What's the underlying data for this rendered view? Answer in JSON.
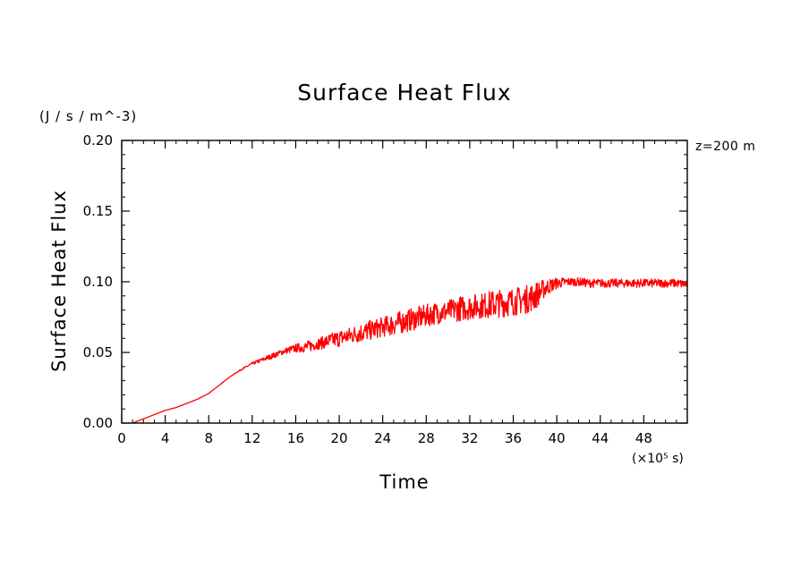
{
  "chart_data": {
    "type": "line",
    "title": "Surface Heat Flux",
    "unit_label": "(J / s / m^-3)",
    "ylabel": "Surface Heat Flux",
    "xlabel": "Time",
    "x_scale_note": "(×10⁵ s)",
    "annotation": "z=200 m",
    "xlim": [
      0,
      52
    ],
    "ylim": [
      0,
      0.2
    ],
    "x_ticks": [
      0,
      4,
      8,
      12,
      16,
      20,
      24,
      28,
      32,
      36,
      40,
      44,
      48
    ],
    "x_tick_labels": [
      "0",
      "4",
      "8",
      "12",
      "16",
      "20",
      "24",
      "28",
      "32",
      "36",
      "40",
      "44",
      "48"
    ],
    "y_ticks": [
      0,
      0.05,
      0.1,
      0.15,
      0.2
    ],
    "y_tick_labels": [
      "0.00",
      "0.05",
      "0.10",
      "0.15",
      "0.20"
    ],
    "grid": false,
    "series": [
      {
        "color": "#ff0000",
        "x": [
          1,
          2,
          3,
          4,
          5,
          6,
          7,
          8,
          9,
          10,
          11,
          12,
          13,
          14,
          15,
          16,
          17,
          18,
          19,
          20,
          21,
          22,
          23,
          24,
          25,
          26,
          27,
          28,
          29,
          30,
          31,
          32,
          33,
          34,
          35,
          36,
          37,
          38,
          39,
          40,
          41,
          42,
          43,
          44,
          45,
          46,
          47,
          48,
          49,
          50,
          51,
          52
        ],
        "y": [
          0.0,
          0.003,
          0.006,
          0.009,
          0.011,
          0.014,
          0.017,
          0.021,
          0.027,
          0.033,
          0.038,
          0.042,
          0.045,
          0.048,
          0.051,
          0.053,
          0.054,
          0.056,
          0.058,
          0.06,
          0.062,
          0.064,
          0.066,
          0.068,
          0.07,
          0.072,
          0.074,
          0.076,
          0.078,
          0.079,
          0.081,
          0.082,
          0.083,
          0.084,
          0.085,
          0.086,
          0.087,
          0.09,
          0.096,
          0.099,
          0.1,
          0.1,
          0.099,
          0.099,
          0.099,
          0.099,
          0.099,
          0.099,
          0.099,
          0.099,
          0.099,
          0.098
        ],
        "noise_amplitude": [
          0.0,
          0.0,
          0.0,
          0.0,
          0.0,
          0.0,
          0.0,
          0.0,
          0.0,
          0.0,
          0.0005,
          0.001,
          0.0015,
          0.002,
          0.002,
          0.003,
          0.004,
          0.004,
          0.005,
          0.006,
          0.006,
          0.007,
          0.007,
          0.007,
          0.008,
          0.008,
          0.008,
          0.008,
          0.008,
          0.008,
          0.009,
          0.009,
          0.009,
          0.01,
          0.01,
          0.01,
          0.01,
          0.01,
          0.006,
          0.004,
          0.003,
          0.003,
          0.003,
          0.003,
          0.003,
          0.003,
          0.003,
          0.003,
          0.003,
          0.003,
          0.003,
          0.003
        ]
      }
    ]
  }
}
